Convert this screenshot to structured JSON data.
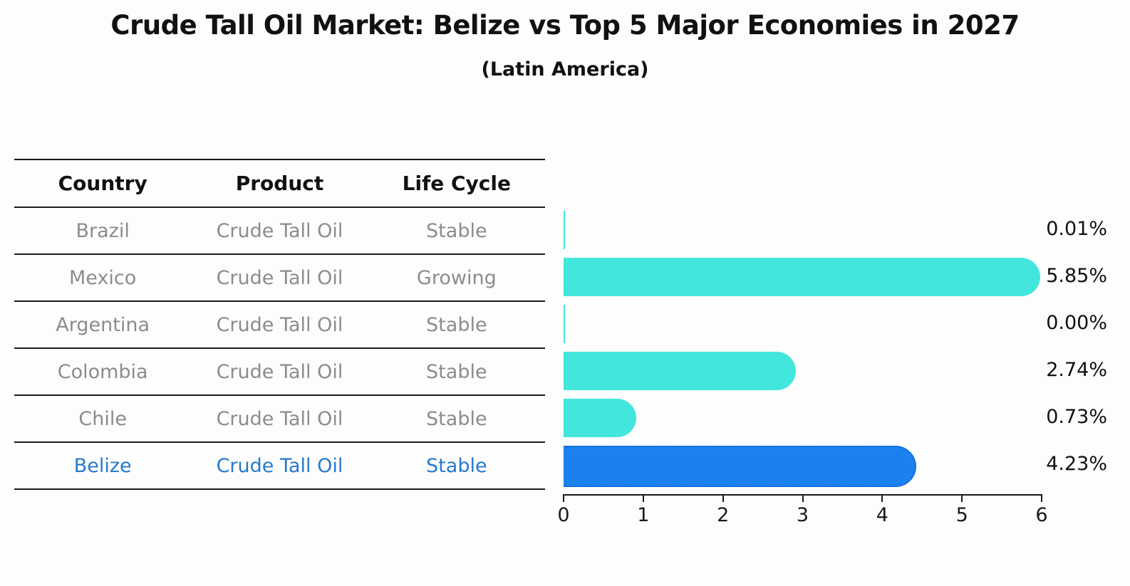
{
  "title": "Crude Tall Oil Market: Belize vs Top 5 Major Economies in 2027",
  "subtitle": "(Latin America)",
  "table": {
    "headers": [
      "Country",
      "Product",
      "Life Cycle"
    ],
    "rows": [
      {
        "country": "Brazil",
        "product": "Crude Tall Oil",
        "life_cycle": "Stable",
        "highlighted": false
      },
      {
        "country": "Mexico",
        "product": "Crude Tall Oil",
        "life_cycle": "Growing",
        "highlighted": false
      },
      {
        "country": "Argentina",
        "product": "Crude Tall Oil",
        "life_cycle": "Stable",
        "highlighted": false
      },
      {
        "country": "Colombia",
        "product": "Crude Tall Oil",
        "life_cycle": "Stable",
        "highlighted": false
      },
      {
        "country": "Chile",
        "product": "Crude Tall Oil",
        "life_cycle": "Stable",
        "highlighted": false
      },
      {
        "country": "Belize",
        "product": "Crude Tall Oil",
        "life_cycle": "Stable",
        "highlighted": true
      }
    ]
  },
  "chart_data": {
    "type": "bar",
    "orientation": "horizontal",
    "categories": [
      "Brazil",
      "Mexico",
      "Argentina",
      "Colombia",
      "Chile",
      "Belize"
    ],
    "values": [
      0.01,
      5.85,
      0.0,
      2.74,
      0.73,
      4.23
    ],
    "value_labels": [
      "0.01%",
      "5.85%",
      "0.00%",
      "2.74%",
      "0.73%",
      "4.23%"
    ],
    "xlim": [
      0,
      6
    ],
    "xticks": [
      "0",
      "1",
      "2",
      "3",
      "4",
      "5",
      "6"
    ],
    "grid": false,
    "legend_position": "none",
    "highlight_index": 5,
    "bar_color": "#43e6dc",
    "highlight_bar_color": "#1b81ee",
    "highlight_border_color": "#0d64d6",
    "highlight_text_color": "#2679cf"
  }
}
